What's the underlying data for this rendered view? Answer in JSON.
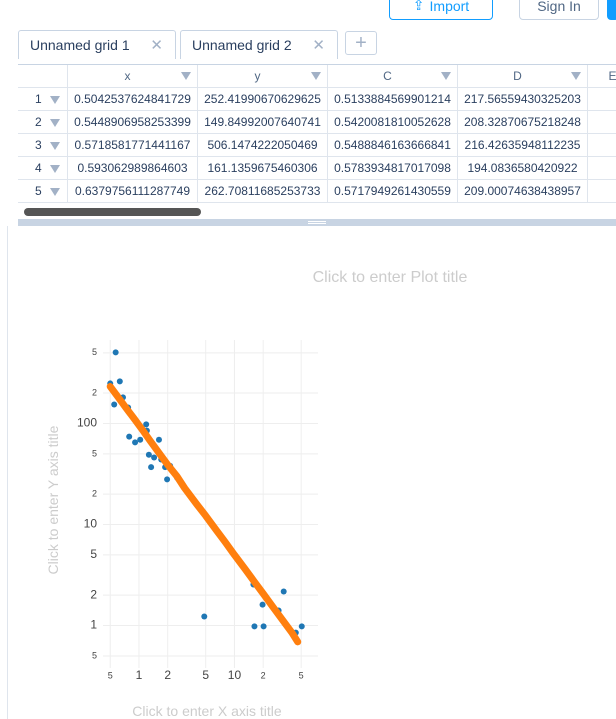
{
  "header": {
    "import_button": "Import",
    "sign_in_button": "Sign In"
  },
  "tabs": [
    "Unnamed grid 1",
    "Unnamed grid 2"
  ],
  "table": {
    "columns": [
      "x",
      "y",
      "C",
      "D",
      "E"
    ],
    "row_numbers": [
      "1",
      "2",
      "3",
      "4",
      "5"
    ],
    "rows": [
      [
        "0.5042537624841729",
        "252.41990670629625",
        "0.5133884569901214",
        "217.56559430325203"
      ],
      [
        "0.5448906958253399",
        "149.84992007640741",
        "0.5420081810052628",
        "208.32870675218248"
      ],
      [
        "0.5718581771441167",
        "506.1474222050469",
        "0.5488846163666841",
        "216.42635948112235"
      ],
      [
        "0.593062989864603",
        "161.1359675460306",
        "0.5783934817017098",
        "194.0836580420922"
      ],
      [
        "0.6379756111287749",
        "262.70811685253733",
        "0.5717949261430559",
        "209.00074638438957"
      ]
    ]
  },
  "chart_data": {
    "type": "scatter",
    "title": "Click to enter Plot title",
    "x_label": "Click to enter X axis title",
    "y_label": "Click to enter Y axis title",
    "xscale": "log",
    "yscale": "log",
    "grid": true,
    "xlim": [
      0.42,
      75
    ],
    "ylim": [
      0.38,
      670
    ],
    "xticks": [
      {
        "value": 0.5,
        "label": "5"
      },
      1,
      2,
      5,
      10,
      {
        "value": 20,
        "label": "2"
      },
      {
        "value": 50,
        "label": "5"
      }
    ],
    "yticks": [
      {
        "value": 0.5,
        "label": "5"
      },
      1,
      2,
      5,
      10,
      {
        "value": 20,
        "label": "2"
      },
      {
        "value": 50,
        "label": "5"
      },
      100,
      {
        "value": 200,
        "label": "2"
      },
      {
        "value": 500,
        "label": "5"
      }
    ],
    "series": [
      {
        "mode": "markers",
        "color": "#1f77b4",
        "x": [
          0.57,
          0.5,
          0.63,
          0.55,
          0.68,
          0.77,
          0.79,
          0.91,
          1.19,
          1.21,
          1.03,
          1.62,
          1.27,
          1.44,
          1.34,
          1.71,
          1.88,
          2.12,
          1.97,
          2.51,
          4.83,
          15.8,
          32.8,
          16.2,
          20.2,
          19.7,
          29,
          43.9,
          50.7
        ],
        "values": [
          505,
          249,
          261,
          154,
          181,
          144,
          74,
          65,
          98,
          85,
          69,
          69,
          49,
          46,
          37,
          44,
          37,
          38,
          28,
          29,
          1.23,
          2.55,
          2.17,
          0.98,
          0.98,
          1.61,
          1.41,
          0.85,
          0.98
        ]
      },
      {
        "mode": "lines+markers",
        "color": "#ff7f0e",
        "x": [
          0.5,
          0.6,
          0.75,
          0.9,
          1.1,
          1.3,
          1.6,
          2,
          2.5,
          3,
          4,
          5,
          6.5,
          8,
          10,
          13,
          16,
          20,
          25,
          32,
          40,
          46
        ],
        "values": [
          232,
          184,
          138,
          110,
          85,
          68,
          52,
          39,
          30,
          23,
          16,
          12.2,
          8.7,
          6.7,
          5.0,
          3.6,
          2.75,
          2.07,
          1.55,
          1.13,
          0.85,
          0.69
        ]
      }
    ]
  }
}
